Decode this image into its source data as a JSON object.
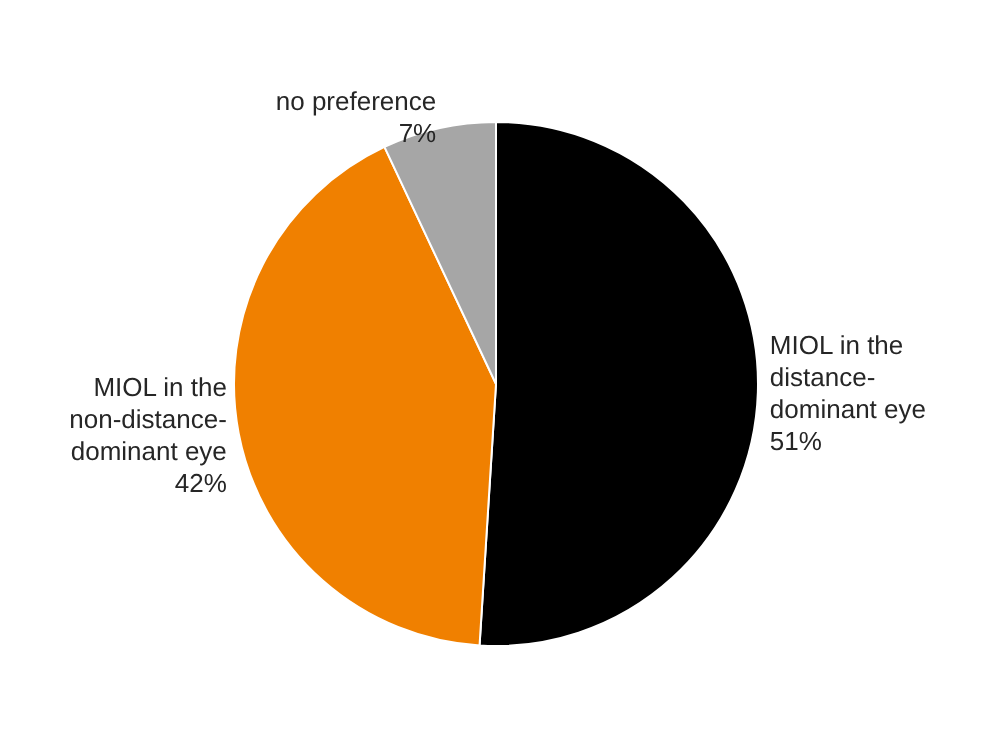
{
  "chart_data": {
    "type": "pie",
    "categories": [
      "MIOL in the distance-dominant eye",
      "MIOL in the non-distance-dominant eye",
      "no preference"
    ],
    "values": [
      51,
      42,
      7
    ],
    "colors": [
      "#000000",
      "#f08000",
      "#a6a6a6"
    ],
    "value_labels": [
      "51%",
      "42%",
      "7%"
    ],
    "legend": false
  }
}
